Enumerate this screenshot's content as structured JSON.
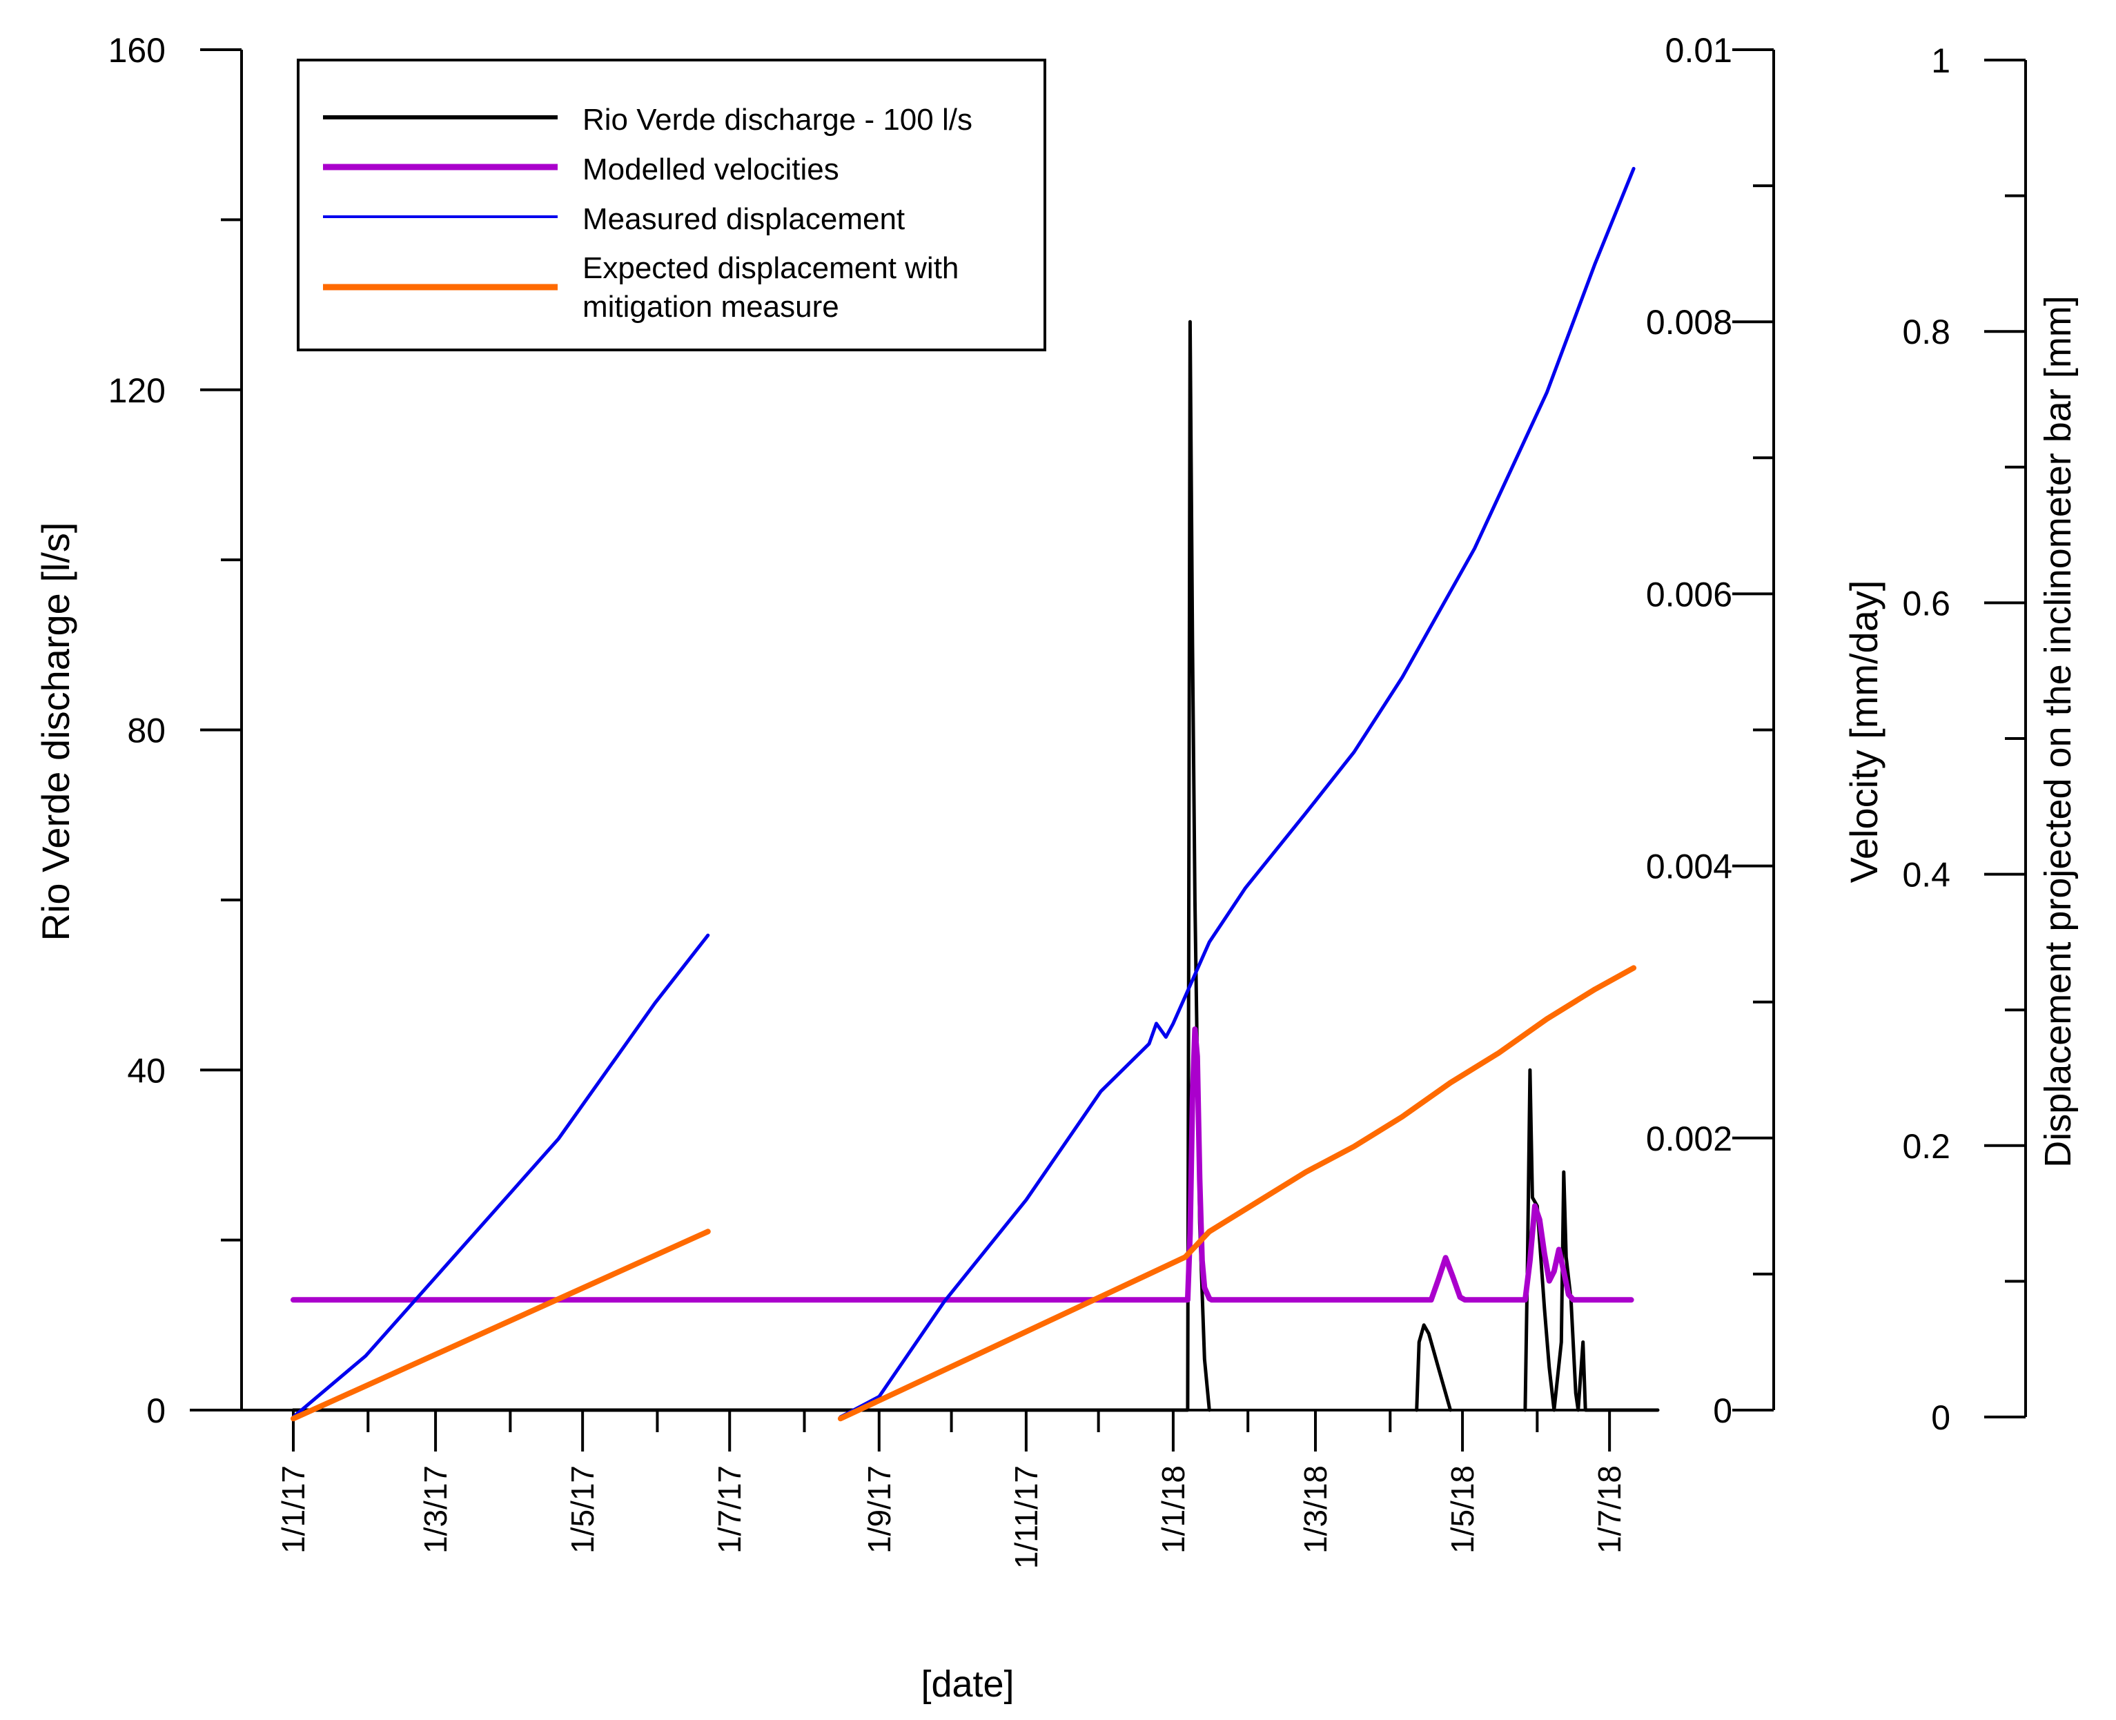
{
  "chart_data": {
    "type": "line",
    "xlabel": "[date]",
    "x_domain_days": [
      0,
      566
    ],
    "x_ticks": [
      {
        "day": 0,
        "label": "1/1/17"
      },
      {
        "day": 59,
        "label": "1/3/17"
      },
      {
        "day": 120,
        "label": "1/5/17"
      },
      {
        "day": 181,
        "label": "1/7/17"
      },
      {
        "day": 243,
        "label": "1/9/17"
      },
      {
        "day": 304,
        "label": "1/11/17"
      },
      {
        "day": 365,
        "label": "1/1/18"
      },
      {
        "day": 424,
        "label": "1/3/18"
      },
      {
        "day": 485,
        "label": "1/5/18"
      },
      {
        "day": 546,
        "label": "1/7/18"
      }
    ],
    "x_minor_ticks": [
      31,
      90,
      151,
      212,
      273,
      334,
      396,
      455,
      516
    ],
    "axes": [
      {
        "id": "discharge",
        "label": "Rio Verde discharge [l/s]",
        "ylim": [
          0,
          160
        ],
        "ticks": [
          {
            "value": 0,
            "label": "0"
          },
          {
            "value": 40,
            "label": "40"
          },
          {
            "value": 80,
            "label": "80"
          },
          {
            "value": 120,
            "label": "120"
          },
          {
            "value": 160,
            "label": "160"
          }
        ],
        "minor_ticks": [
          20,
          60,
          100,
          140
        ]
      },
      {
        "id": "velocity",
        "label": "Velocity [mm/day]",
        "ylim": [
          0,
          0.01
        ],
        "ticks": [
          {
            "value": 0,
            "label": "0"
          },
          {
            "value": 0.002,
            "label": "0.002"
          },
          {
            "value": 0.004,
            "label": "0.004"
          },
          {
            "value": 0.006,
            "label": "0.006"
          },
          {
            "value": 0.008,
            "label": "0.008"
          },
          {
            "value": 0.01,
            "label": "0.01"
          }
        ],
        "minor_ticks": [
          0.001,
          0.003,
          0.005,
          0.007,
          0.009
        ]
      },
      {
        "id": "displacement",
        "label": "Displacement projected on the inclinometer bar [mm]",
        "ylim": [
          0,
          1
        ],
        "ticks": [
          {
            "value": 0,
            "label": "0"
          },
          {
            "value": 0.2,
            "label": "0.2"
          },
          {
            "value": 0.4,
            "label": "0.4"
          },
          {
            "value": 0.6,
            "label": "0.6"
          },
          {
            "value": 0.8,
            "label": "0.8"
          },
          {
            "value": 1,
            "label": "1"
          }
        ],
        "minor_ticks": [
          0.1,
          0.3,
          0.5,
          0.7,
          0.9
        ]
      }
    ],
    "legend_position": "top-left",
    "series": [
      {
        "name": "Rio Verde discharge - 100 l/s",
        "axis": "discharge",
        "color": "#000000",
        "segments": [
          [
            [
              0,
              0
            ],
            [
              371,
              0
            ],
            [
              372,
              128
            ],
            [
              373,
              90
            ],
            [
              374,
              60
            ],
            [
              376,
              22
            ],
            [
              378,
              6
            ],
            [
              380,
              0
            ]
          ],
          [
            [
              466,
              0
            ],
            [
              467,
              8
            ],
            [
              469,
              10
            ],
            [
              471,
              9
            ],
            [
              473,
              7
            ],
            [
              475,
              5
            ],
            [
              477,
              3
            ],
            [
              479,
              1
            ],
            [
              480,
              0
            ]
          ],
          [
            [
              511,
              0
            ],
            [
              512,
              18
            ],
            [
              513,
              40
            ],
            [
              514,
              25
            ],
            [
              516,
              24
            ],
            [
              517,
              20
            ],
            [
              519,
              12
            ],
            [
              521,
              5
            ],
            [
              523,
              0
            ],
            [
              526,
              8
            ],
            [
              527,
              28
            ],
            [
              528,
              18
            ],
            [
              530,
              13
            ],
            [
              532,
              2
            ],
            [
              533,
              0
            ],
            [
              535,
              8
            ],
            [
              536,
              0
            ],
            [
              566,
              0
            ]
          ]
        ]
      },
      {
        "name": "Modelled velocities",
        "axis": "velocity",
        "color": "#aa00cc",
        "segments": [
          [
            [
              0,
              0.00081
            ],
            [
              371,
              0.00081
            ],
            [
              372,
              0.0013
            ],
            [
              373,
              0.0023
            ],
            [
              374,
              0.0028
            ],
            [
              375,
              0.0026
            ],
            [
              376,
              0.0017
            ],
            [
              377,
              0.0011
            ],
            [
              378,
              0.0009
            ],
            [
              380,
              0.00082
            ],
            [
              381,
              0.00081
            ],
            [
              472,
              0.00081
            ],
            [
              475,
              0.00096
            ],
            [
              478,
              0.00112
            ],
            [
              481,
              0.00098
            ],
            [
              484,
              0.00083
            ],
            [
              486,
              0.00081
            ],
            [
              511,
              0.00081
            ],
            [
              513,
              0.0011
            ],
            [
              515,
              0.0015
            ],
            [
              517,
              0.0014
            ],
            [
              519,
              0.00115
            ],
            [
              521,
              0.00095
            ],
            [
              523,
              0.00102
            ],
            [
              525,
              0.00118
            ],
            [
              527,
              0.00102
            ],
            [
              529,
              0.00085
            ],
            [
              531,
              0.00081
            ],
            [
              555,
              0.00081
            ]
          ]
        ]
      },
      {
        "name": "Measured displacement",
        "axis": "displacement",
        "color": "#0000ee",
        "segments": [
          [
            [
              0,
              0
            ],
            [
              30,
              0.045
            ],
            [
              60,
              0.105
            ],
            [
              90,
              0.165
            ],
            [
              110,
              0.205
            ],
            [
              130,
              0.255
            ],
            [
              150,
              0.305
            ],
            [
              172,
              0.355
            ]
          ],
          [
            [
              227,
              0
            ],
            [
              243,
              0.015
            ],
            [
              270,
              0.085
            ],
            [
              304,
              0.16
            ],
            [
              335,
              0.24
            ],
            [
              355,
              0.275
            ],
            [
              358,
              0.29
            ],
            [
              362,
              0.28
            ],
            [
              365,
              0.29
            ],
            [
              370,
              0.31
            ],
            [
              380,
              0.35
            ],
            [
              395,
              0.39
            ],
            [
              420,
              0.445
            ],
            [
              440,
              0.49
            ],
            [
              460,
              0.545
            ],
            [
              490,
              0.64
            ],
            [
              520,
              0.755
            ],
            [
              540,
              0.85
            ],
            [
              556,
              0.92
            ]
          ]
        ]
      },
      {
        "name": "Expected displacement with mitigation measure",
        "axis": "discharge",
        "color": "#ff6a00",
        "segments": [
          [
            [
              0,
              -1
            ],
            [
              172,
              21
            ]
          ],
          [
            [
              227,
              -1
            ],
            [
              370,
              18
            ],
            [
              380,
              21
            ],
            [
              400,
              24.5
            ],
            [
              420,
              28
            ],
            [
              440,
              31
            ],
            [
              460,
              34.5
            ],
            [
              480,
              38.5
            ],
            [
              500,
              42
            ],
            [
              520,
              46
            ],
            [
              540,
              49.5
            ],
            [
              556,
              52
            ]
          ]
        ]
      }
    ]
  }
}
